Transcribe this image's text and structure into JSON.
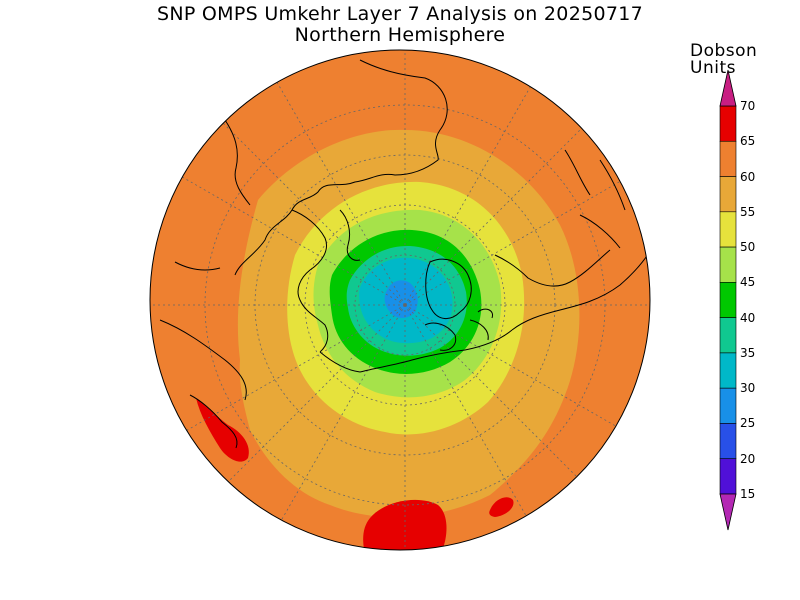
{
  "title_line1": "SNP OMPS Umkehr Layer 7 Analysis on 20250717",
  "title_line2": "Northern Hemisphere",
  "colorbar": {
    "unit_line1": "Dobson",
    "unit_line2": "Units",
    "ticks": [
      "70",
      "65",
      "60",
      "55",
      "50",
      "45",
      "40",
      "35",
      "30",
      "25",
      "20",
      "15"
    ],
    "colors": [
      "#e60000",
      "#ee8030",
      "#e8a838",
      "#e6e23c",
      "#a6e24a",
      "#00c800",
      "#10c890",
      "#00b8c8",
      "#1890e8",
      "#2850e8",
      "#5010d8",
      "#8c14d8"
    ],
    "over_color": "#c81e82",
    "under_color": "#b428b4"
  },
  "map": {
    "projection": "north-polar-stereographic",
    "ocean_color": "#ee8030",
    "contour_colors": {
      "55-60": "#e8a838",
      "50-55": "#e6e23c",
      "45-50": "#a6e24a",
      "40-45": "#00c800",
      "35-40": "#10c890",
      "30-35": "#00b8c8",
      "25-30": "#1890e8",
      "65-70": "#e60000"
    }
  }
}
